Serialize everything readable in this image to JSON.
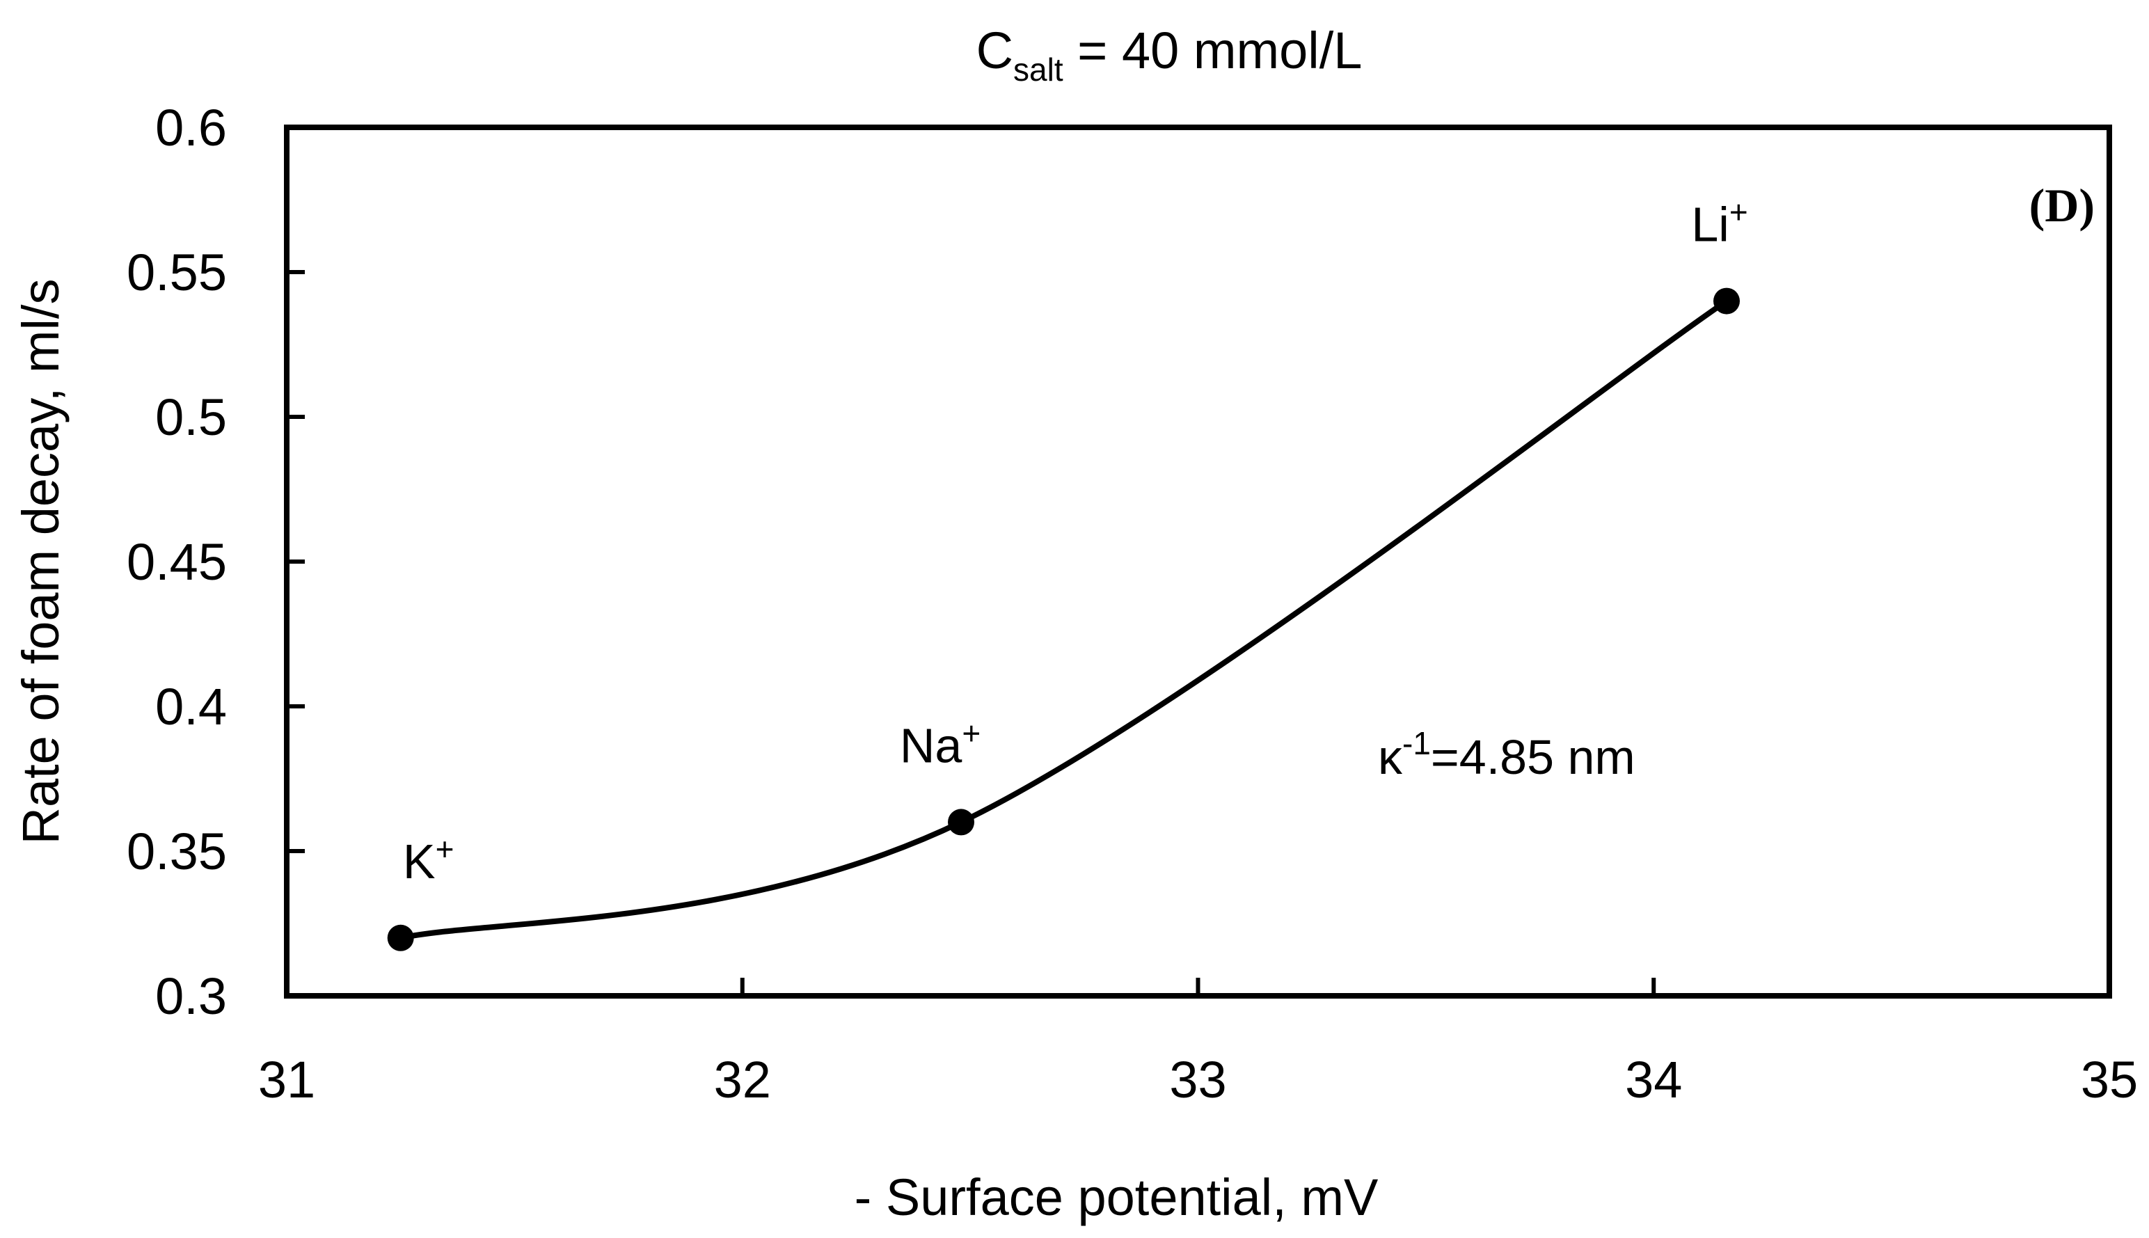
{
  "chart_data": {
    "type": "line",
    "title": {
      "main": "C",
      "subscript": "salt",
      "rest": " = 40 mmol/L"
    },
    "xlabel": "- Surface potential, mV",
    "ylabel": "Rate of foam decay, ml/s",
    "xlim": [
      31,
      35
    ],
    "ylim": [
      0.3,
      0.6
    ],
    "x_ticks": [
      31,
      32,
      33,
      34,
      35
    ],
    "x_tick_labels": [
      "31",
      "32",
      "33",
      "34",
      "35"
    ],
    "y_ticks": [
      0.3,
      0.35,
      0.4,
      0.45,
      0.5,
      0.55,
      0.6
    ],
    "y_tick_labels": [
      "0.3",
      "0.35",
      "0.4",
      "0.45",
      "0.5",
      "0.55",
      "0.6"
    ],
    "grid": false,
    "smooth": true,
    "series": [
      {
        "name": "foam decay",
        "x": [
          31.25,
          32.48,
          34.16
        ],
        "y": [
          0.32,
          0.36,
          0.54
        ],
        "point_labels": [
          {
            "base": "K",
            "sup": "+"
          },
          {
            "base": "Na",
            "sup": "+"
          },
          {
            "base": "Li",
            "sup": "+"
          }
        ]
      }
    ],
    "annotations": {
      "panel": "(D)",
      "debye": {
        "symbol": "κ",
        "sup": "-1",
        "rest": "=4.85 nm"
      }
    }
  }
}
